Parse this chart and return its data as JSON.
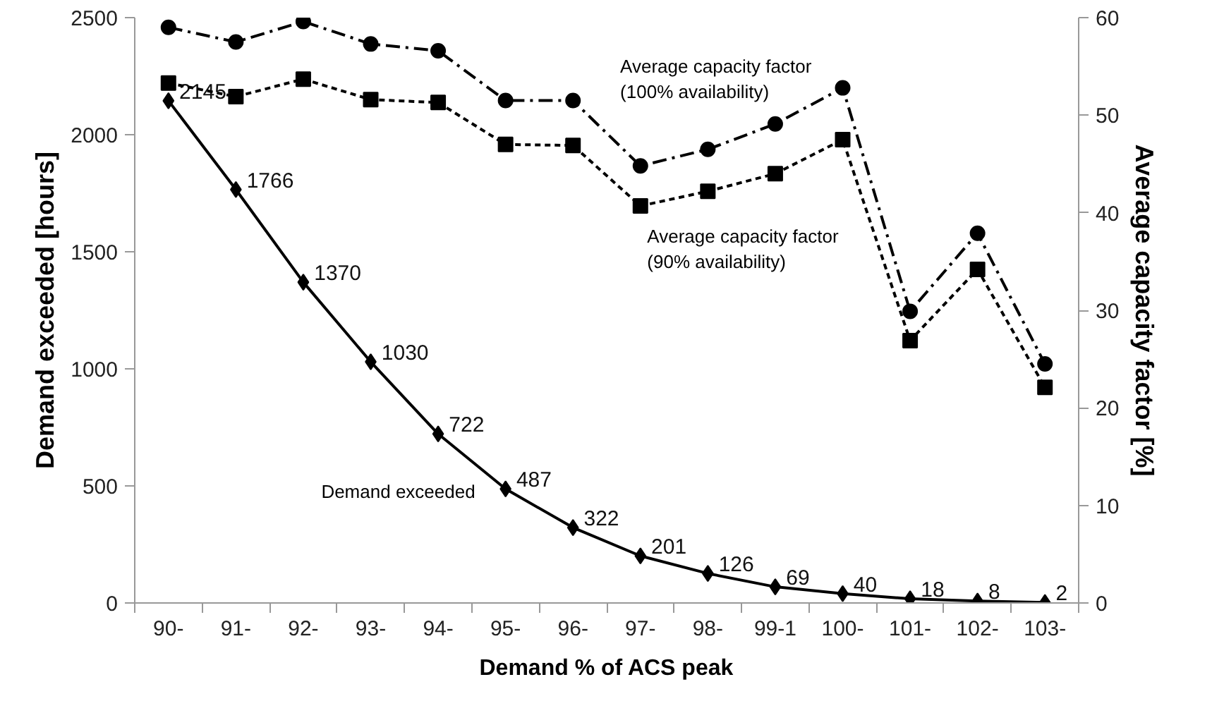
{
  "chart_data": {
    "type": "line",
    "xlabel": "Demand % of ACS peak",
    "ylabel": "Demand exceeded [hours]",
    "y2label": "Average capacity factor [%]",
    "categories": [
      "90-",
      "91-",
      "92-",
      "93-",
      "94-",
      "95-",
      "96-",
      "97-",
      "98-",
      "99-1",
      "100-",
      "101-",
      "102-",
      "103-"
    ],
    "ylim": [
      0,
      2500
    ],
    "yticks": [
      0,
      500,
      1000,
      1500,
      2000,
      2500
    ],
    "y2lim": [
      0,
      60
    ],
    "y2ticks": [
      0,
      10,
      20,
      30,
      40,
      50,
      60
    ],
    "grid": false,
    "series": [
      {
        "name": "Demand exceeded",
        "color": "#000000",
        "marker": "diamond",
        "line_style": "solid",
        "values": [
          2145,
          1766,
          1370,
          1030,
          722,
          487,
          322,
          201,
          126,
          69,
          40,
          18,
          8,
          2
        ],
        "value_labels": [
          "2145",
          "1766",
          "1370",
          "1030",
          "722",
          "487",
          "322",
          "201",
          "126",
          "69",
          "40",
          "18",
          "8",
          "2"
        ]
      },
      {
        "name": "Average capacity factor (90% availability)",
        "color": "#000000",
        "marker": "square",
        "line_style": "dashed",
        "axis": "y2",
        "values": [
          53.3,
          51.9,
          53.7,
          51.6,
          51.3,
          47.0,
          46.9,
          40.7,
          42.2,
          44.0,
          47.5,
          26.9,
          34.2,
          22.1
        ]
      },
      {
        "name": "Average capacity factor (100% availability)",
        "color": "#000000",
        "marker": "circle",
        "line_style": "dashdot",
        "axis": "y2",
        "values": [
          59.0,
          57.5,
          59.6,
          57.3,
          56.6,
          51.5,
          51.5,
          44.8,
          46.5,
          49.1,
          52.8,
          29.9,
          37.9,
          24.5
        ]
      }
    ]
  }
}
